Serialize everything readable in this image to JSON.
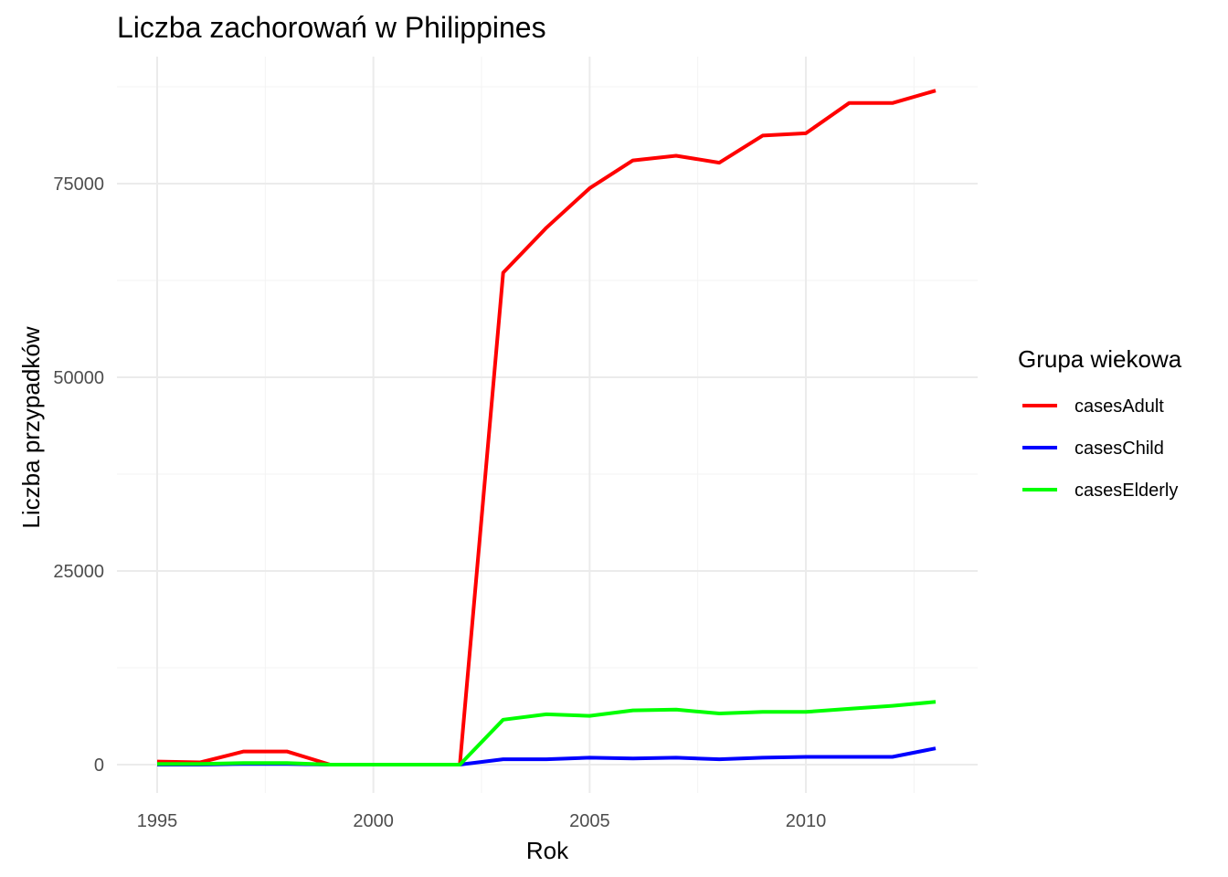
{
  "chart_data": {
    "type": "line",
    "title": "Liczba zachorowań w Philippines",
    "xlabel": "Rok",
    "ylabel": "Liczba przypadków",
    "xlim": [
      1995,
      2013
    ],
    "ylim": [
      0,
      90000
    ],
    "x_ticks": [
      "1995",
      "2000",
      "2005",
      "2010"
    ],
    "y_ticks": [
      "0",
      "25000",
      "50000",
      "75000"
    ],
    "grid": true,
    "legend": {
      "title": "Grupa wiekowa",
      "position": "right"
    },
    "x": [
      1995,
      1996,
      1997,
      1998,
      1999,
      2000,
      2001,
      2002,
      2003,
      2004,
      2005,
      2006,
      2007,
      2008,
      2009,
      2010,
      2011,
      2012,
      2013
    ],
    "series": [
      {
        "name": "casesAdult",
        "color": "#ff0000",
        "values": [
          400,
          300,
          1700,
          1700,
          0,
          0,
          0,
          0,
          63500,
          69300,
          74400,
          78000,
          78600,
          77700,
          81200,
          81500,
          85400,
          85400,
          87000
        ]
      },
      {
        "name": "casesChild",
        "color": "#0000ff",
        "values": [
          0,
          0,
          100,
          100,
          0,
          0,
          0,
          0,
          700,
          700,
          900,
          800,
          900,
          700,
          900,
          1000,
          1000,
          1000,
          2100
        ]
      },
      {
        "name": "casesElderly",
        "color": "#00ff00",
        "values": [
          100,
          100,
          200,
          200,
          0,
          0,
          0,
          0,
          5800,
          6500,
          6300,
          7000,
          7100,
          6600,
          6800,
          6800,
          7200,
          7600,
          8100
        ]
      }
    ]
  }
}
